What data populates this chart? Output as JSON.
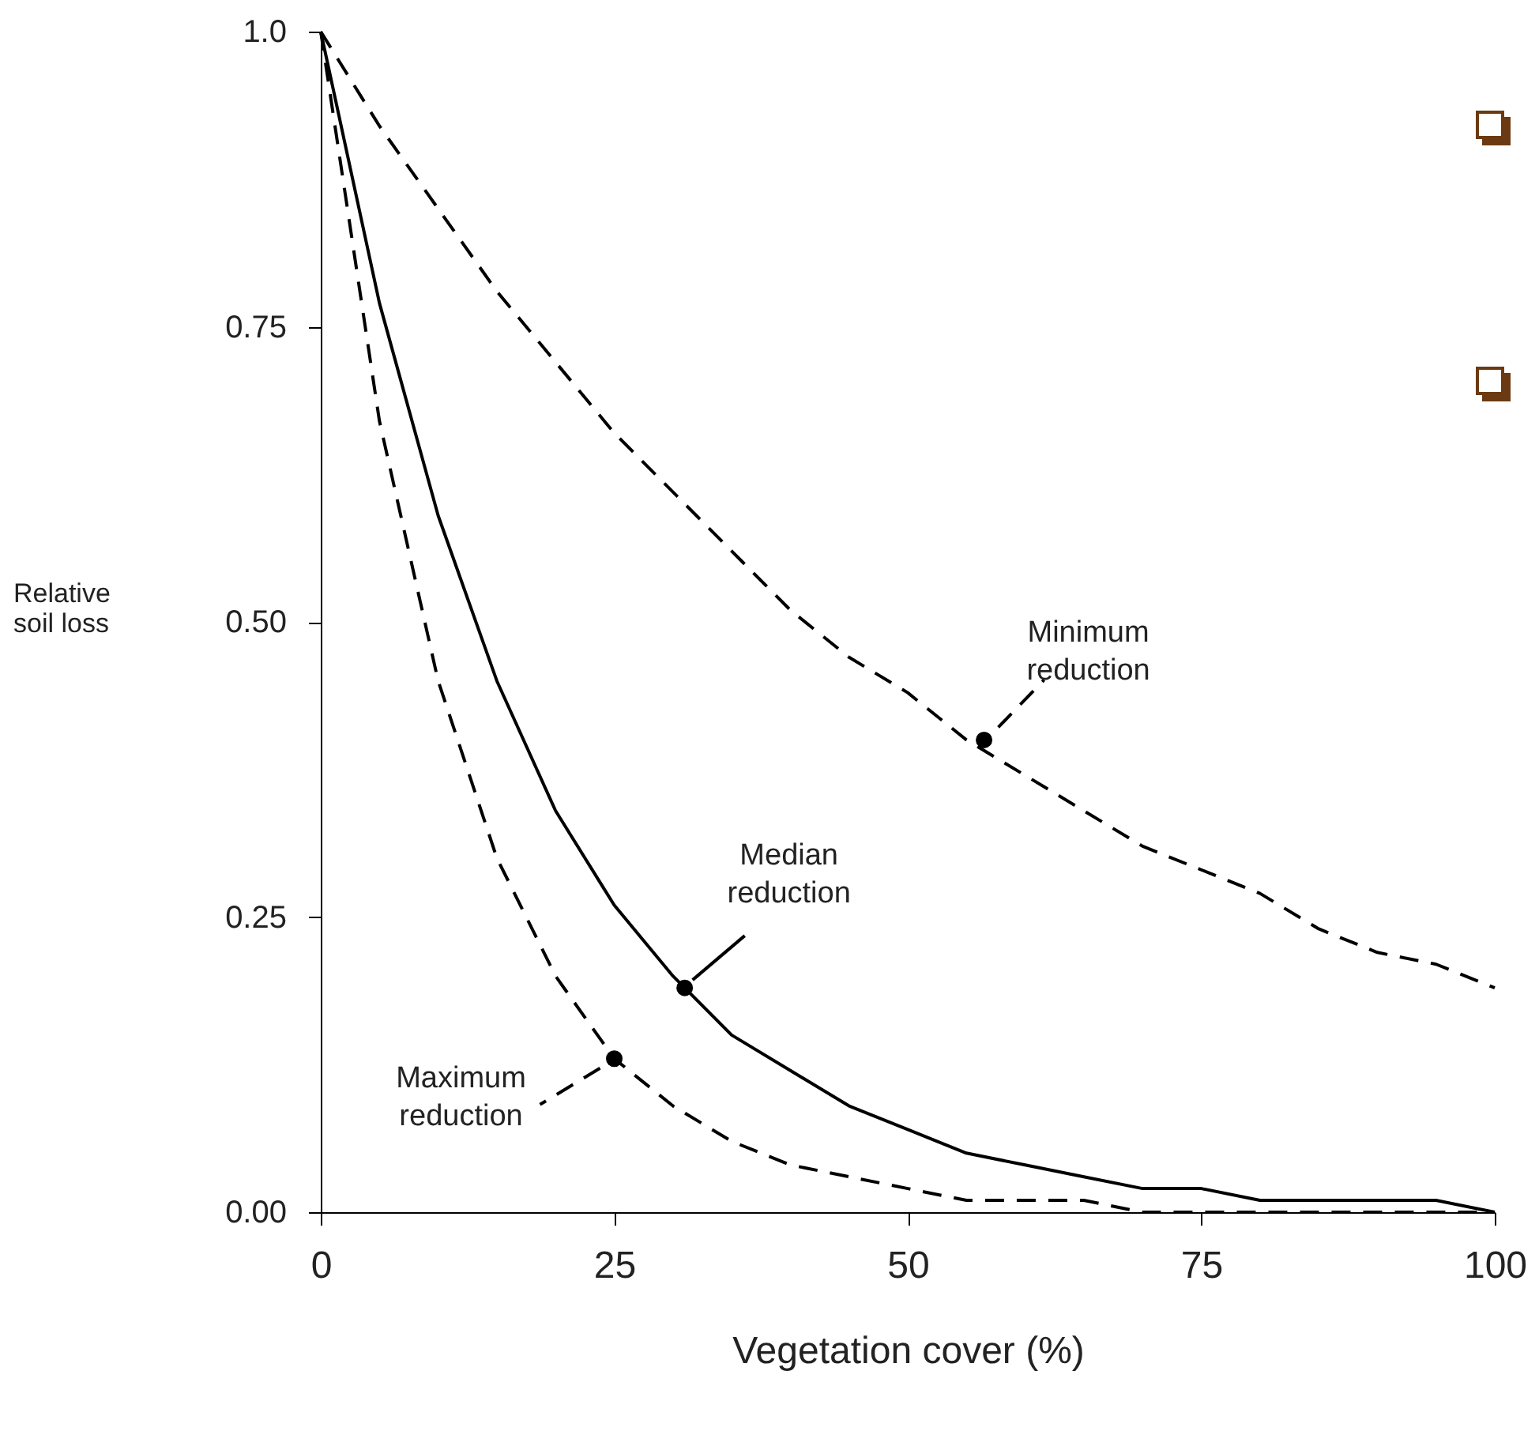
{
  "chart_data": {
    "type": "line",
    "xlabel": "Vegetation cover (%)",
    "ylabel": "Relative soil loss",
    "x": [
      0,
      5,
      10,
      15,
      20,
      25,
      30,
      35,
      40,
      45,
      50,
      55,
      60,
      65,
      70,
      75,
      80,
      85,
      90,
      95,
      100
    ],
    "series": [
      {
        "color": "#000000",
        "line_style": "dashed",
        "values": [
          1,
          0.92,
          0.85,
          0.78,
          0.72,
          0.66,
          0.61,
          0.56,
          0.51,
          0.47,
          0.44,
          0.4,
          0.37,
          0.34,
          0.31,
          0.29,
          0.27,
          0.24,
          0.22,
          0.21,
          0.19
        ]
      },
      {
        "color": "#000000",
        "line_style": "solid",
        "values": [
          1,
          0.77,
          0.59,
          0.45,
          0.34,
          0.26,
          0.2,
          0.15,
          0.12,
          0.09,
          0.07,
          0.05,
          0.04,
          0.03,
          0.02,
          0.02,
          0.01,
          0.01,
          0.01,
          0.01,
          0.0
        ]
      },
      {
        "color": "#000000",
        "line_style": "dashed",
        "values": [
          1,
          0.67,
          0.45,
          0.3,
          0.2,
          0.13,
          0.09,
          0.06,
          0.04,
          0.03,
          0.02,
          0.01,
          0.01,
          0.01,
          0.0,
          0.0,
          0.0,
          0.0,
          0.0,
          0.0,
          0.0
        ]
      }
    ],
    "annotations": [
      {
        "text": "Minimum reduction",
        "x": 56.5,
        "y": 0.4
      },
      {
        "text": "Median reduction",
        "x": 31,
        "y": 0.19
      },
      {
        "text": "Maximum reduction",
        "x": 25,
        "y": 0.13
      }
    ],
    "xlim": [
      0,
      100
    ],
    "xticks": [
      0,
      25,
      50,
      75,
      100
    ],
    "ylim": [
      0,
      1
    ],
    "yticks": [
      {
        "value": 0,
        "label": "0.00"
      },
      {
        "value": 0.25,
        "label": "0.25"
      },
      {
        "value": 0.5,
        "label": "0.50"
      },
      {
        "value": 0.75,
        "label": "0.75"
      },
      {
        "value": 1,
        "label": "1.0"
      }
    ],
    "grid": false,
    "marker": "none"
  }
}
